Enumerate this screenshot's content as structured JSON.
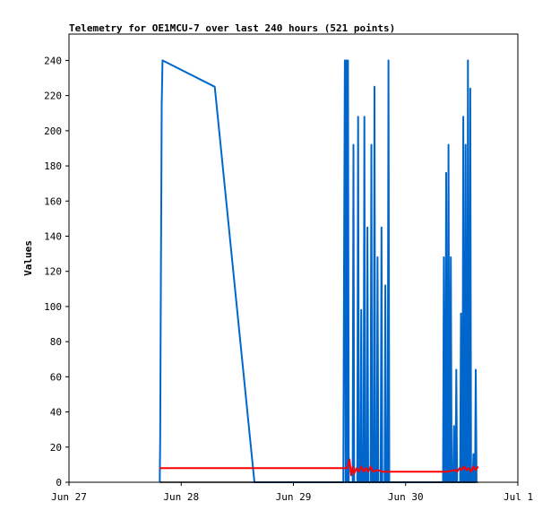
{
  "chart_data": {
    "type": "line",
    "title": "Telemetry for OE1MCU-7 over last 240 hours (521 points)",
    "xlabel": "",
    "ylabel": "Values",
    "xlim": [
      "2025-06-27T00:00",
      "2025-07-01T00:00"
    ],
    "ylim": [
      0,
      255
    ],
    "x_tick_labels": [
      "Jun 27",
      "Jun 28",
      "Jun 29",
      "Jun 30",
      "Jul 1"
    ],
    "y_ticks": [
      0,
      20,
      40,
      60,
      80,
      100,
      120,
      140,
      160,
      180,
      200,
      220,
      240
    ],
    "grid": false,
    "legend": "none",
    "series": [
      {
        "color": "#0066cc",
        "points": [
          [
            "2025-06-27T19:25",
            0
          ],
          [
            "2025-06-27T19:30",
            25
          ],
          [
            "2025-06-27T19:35",
            72
          ],
          [
            "2025-06-27T19:40",
            120
          ],
          [
            "2025-06-27T19:45",
            168
          ],
          [
            "2025-06-27T19:50",
            215
          ],
          [
            "2025-06-27T20:00",
            240
          ],
          [
            "2025-06-28T07:10",
            225
          ],
          [
            "2025-06-28T15:40",
            0
          ],
          [
            "2025-06-29T10:40",
            0
          ],
          [
            "2025-06-29T10:50",
            120
          ],
          [
            "2025-06-29T11:00",
            240
          ],
          [
            "2025-06-29T11:10",
            0
          ],
          [
            "2025-06-29T11:20",
            240
          ],
          [
            "2025-06-29T11:30",
            0
          ],
          [
            "2025-06-29T11:40",
            240
          ],
          [
            "2025-06-29T11:50",
            0
          ],
          [
            "2025-06-29T12:40",
            0
          ],
          [
            "2025-06-29T12:50",
            192
          ],
          [
            "2025-06-29T13:00",
            0
          ],
          [
            "2025-06-29T13:40",
            0
          ],
          [
            "2025-06-29T13:50",
            208
          ],
          [
            "2025-06-29T14:00",
            0
          ],
          [
            "2025-06-29T14:20",
            0
          ],
          [
            "2025-06-29T14:30",
            98
          ],
          [
            "2025-06-29T14:40",
            0
          ],
          [
            "2025-06-29T15:00",
            0
          ],
          [
            "2025-06-29T15:10",
            208
          ],
          [
            "2025-06-29T15:20",
            0
          ],
          [
            "2025-06-29T15:40",
            0
          ],
          [
            "2025-06-29T15:50",
            145
          ],
          [
            "2025-06-29T16:00",
            0
          ],
          [
            "2025-06-29T16:30",
            0
          ],
          [
            "2025-06-29T16:40",
            192
          ],
          [
            "2025-06-29T16:50",
            0
          ],
          [
            "2025-06-29T17:10",
            0
          ],
          [
            "2025-06-29T17:20",
            225
          ],
          [
            "2025-06-29T17:30",
            0
          ],
          [
            "2025-06-29T17:50",
            0
          ],
          [
            "2025-06-29T18:00",
            128
          ],
          [
            "2025-06-29T18:10",
            0
          ],
          [
            "2025-06-29T18:40",
            0
          ],
          [
            "2025-06-29T18:50",
            145
          ],
          [
            "2025-06-29T19:00",
            0
          ],
          [
            "2025-06-29T19:30",
            0
          ],
          [
            "2025-06-29T19:40",
            112
          ],
          [
            "2025-06-29T19:50",
            0
          ],
          [
            "2025-06-29T20:10",
            0
          ],
          [
            "2025-06-29T20:20",
            240
          ],
          [
            "2025-06-29T20:30",
            0
          ],
          [
            "2025-06-30T08:00",
            0
          ],
          [
            "2025-06-30T08:10",
            128
          ],
          [
            "2025-06-30T08:20",
            0
          ],
          [
            "2025-06-30T08:30",
            0
          ],
          [
            "2025-06-30T08:40",
            176
          ],
          [
            "2025-06-30T08:50",
            0
          ],
          [
            "2025-06-30T09:00",
            0
          ],
          [
            "2025-06-30T09:10",
            192
          ],
          [
            "2025-06-30T09:20",
            0
          ],
          [
            "2025-06-30T09:30",
            0
          ],
          [
            "2025-06-30T09:40",
            128
          ],
          [
            "2025-06-30T09:50",
            0
          ],
          [
            "2025-06-30T10:10",
            0
          ],
          [
            "2025-06-30T10:20",
            32
          ],
          [
            "2025-06-30T10:30",
            0
          ],
          [
            "2025-06-30T10:40",
            0
          ],
          [
            "2025-06-30T10:50",
            64
          ],
          [
            "2025-06-30T11:00",
            0
          ],
          [
            "2025-06-30T11:40",
            0
          ],
          [
            "2025-06-30T11:50",
            96
          ],
          [
            "2025-06-30T12:00",
            0
          ],
          [
            "2025-06-30T12:10",
            0
          ],
          [
            "2025-06-30T12:20",
            208
          ],
          [
            "2025-06-30T12:30",
            0
          ],
          [
            "2025-06-30T12:40",
            0
          ],
          [
            "2025-06-30T12:50",
            192
          ],
          [
            "2025-06-30T13:00",
            0
          ],
          [
            "2025-06-30T13:10",
            0
          ],
          [
            "2025-06-30T13:20",
            240
          ],
          [
            "2025-06-30T13:30",
            0
          ],
          [
            "2025-06-30T13:40",
            0
          ],
          [
            "2025-06-30T13:50",
            224
          ],
          [
            "2025-06-30T14:00",
            0
          ],
          [
            "2025-06-30T14:20",
            0
          ],
          [
            "2025-06-30T14:30",
            16
          ],
          [
            "2025-06-30T14:40",
            0
          ],
          [
            "2025-06-30T14:50",
            0
          ],
          [
            "2025-06-30T15:00",
            64
          ],
          [
            "2025-06-30T15:10",
            0
          ]
        ]
      },
      {
        "color": "#ff0000",
        "points": [
          [
            "2025-06-27T19:25",
            8
          ],
          [
            "2025-06-29T11:30",
            8
          ],
          [
            "2025-06-29T12:00",
            13
          ],
          [
            "2025-06-29T12:20",
            4
          ],
          [
            "2025-06-29T12:40",
            9
          ],
          [
            "2025-06-29T13:00",
            5
          ],
          [
            "2025-06-29T13:30",
            8
          ],
          [
            "2025-06-29T14:00",
            6
          ],
          [
            "2025-06-29T14:30",
            9
          ],
          [
            "2025-06-29T15:00",
            6
          ],
          [
            "2025-06-29T15:30",
            8
          ],
          [
            "2025-06-29T16:00",
            6
          ],
          [
            "2025-06-29T16:30",
            9
          ],
          [
            "2025-06-29T17:00",
            6
          ],
          [
            "2025-06-29T18:00",
            7
          ],
          [
            "2025-06-29T19:00",
            6
          ],
          [
            "2025-06-30T07:50",
            6
          ],
          [
            "2025-06-30T09:00",
            6
          ],
          [
            "2025-06-30T10:30",
            7
          ],
          [
            "2025-06-30T11:00",
            6
          ],
          [
            "2025-06-30T11:30",
            8
          ],
          [
            "2025-06-30T12:00",
            7
          ],
          [
            "2025-06-30T12:30",
            9
          ],
          [
            "2025-06-30T13:00",
            7
          ],
          [
            "2025-06-30T13:30",
            8
          ],
          [
            "2025-06-30T14:00",
            6
          ],
          [
            "2025-06-30T14:30",
            9
          ],
          [
            "2025-06-30T15:00",
            7
          ],
          [
            "2025-06-30T15:30",
            9
          ]
        ]
      },
      {
        "color": "#000000",
        "points": [
          [
            "2025-06-27T19:25",
            0
          ],
          [
            "2025-06-30T15:30",
            0
          ]
        ]
      }
    ]
  }
}
